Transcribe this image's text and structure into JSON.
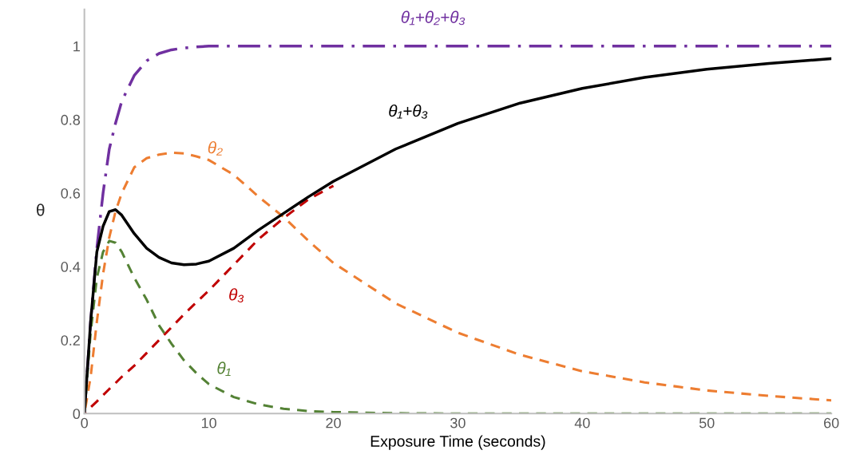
{
  "chart_data": {
    "type": "line",
    "xlabel": "Exposure Time (seconds)",
    "ylabel": "θ",
    "x": [
      0,
      0.5,
      1,
      1.5,
      2,
      2.5,
      3,
      4,
      5,
      6,
      7,
      8,
      9,
      10,
      12,
      14,
      16,
      18,
      20,
      25,
      30,
      35,
      40,
      45,
      50,
      55,
      60
    ],
    "series": [
      {
        "name": "θ₁+θ₂+θ₃",
        "color": "#7030a0",
        "line_style": "dashdot",
        "values": [
          0,
          0.25,
          0.45,
          0.6,
          0.72,
          0.79,
          0.85,
          0.92,
          0.96,
          0.98,
          0.99,
          0.995,
          0.998,
          1,
          1,
          1,
          1,
          1,
          1,
          1,
          1,
          1,
          1,
          1,
          1,
          1,
          1
        ]
      },
      {
        "name": "θ₂",
        "color": "#ed7d31",
        "line_style": "dashed",
        "values": [
          0,
          0.1,
          0.25,
          0.38,
          0.48,
          0.55,
          0.6,
          0.67,
          0.695,
          0.705,
          0.71,
          0.708,
          0.7,
          0.69,
          0.65,
          0.59,
          0.535,
          0.47,
          0.41,
          0.3,
          0.22,
          0.16,
          0.115,
          0.085,
          0.063,
          0.048,
          0.036
        ]
      },
      {
        "name": "θ₃",
        "color": "#c00000",
        "line_style": "dashed",
        "values": [
          0,
          0.017,
          0.033,
          0.05,
          0.067,
          0.083,
          0.1,
          0.13,
          0.165,
          0.2,
          0.235,
          0.27,
          0.303,
          0.335,
          0.405,
          0.475,
          0.532,
          0.583,
          0.62,
          null,
          null,
          null,
          null,
          null,
          null,
          null,
          null
        ]
      },
      {
        "name": "θ₁",
        "color": "#548235",
        "line_style": "dashed",
        "values": [
          0,
          0.22,
          0.37,
          0.44,
          0.47,
          0.465,
          0.44,
          0.37,
          0.31,
          0.24,
          0.19,
          0.145,
          0.11,
          0.08,
          0.045,
          0.025,
          0.013,
          0.007,
          0.004,
          0.001,
          0,
          0,
          0,
          0,
          0,
          0,
          0
        ]
      },
      {
        "name": "θ₁+θ₃",
        "color": "#000000",
        "line_style": "solid",
        "values": [
          0,
          0.25,
          0.44,
          0.51,
          0.55,
          0.555,
          0.54,
          0.49,
          0.45,
          0.425,
          0.41,
          0.405,
          0.407,
          0.415,
          0.45,
          0.5,
          0.545,
          0.59,
          0.632,
          0.72,
          0.79,
          0.845,
          0.885,
          0.915,
          0.937,
          0.953,
          0.966
        ]
      }
    ],
    "xlim": [
      0,
      60
    ],
    "xticks": [
      0,
      10,
      20,
      30,
      40,
      50,
      60
    ],
    "ylim": [
      0,
      1.1
    ],
    "yticks": [
      0,
      0.2,
      0.4,
      0.6,
      0.8,
      1
    ],
    "grid": false,
    "legend": false,
    "marker": "none"
  }
}
